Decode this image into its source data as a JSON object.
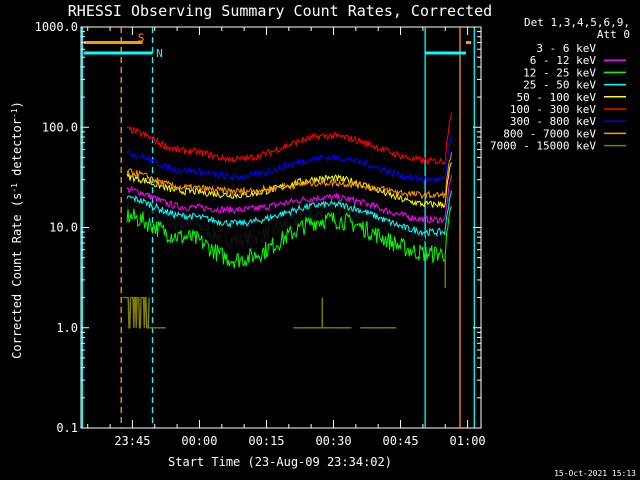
{
  "chart_data": {
    "type": "line",
    "title": "RHESSI Observing Summary Count Rates, Corrected",
    "xlabel": "Start Time (23-Aug-09 23:34:02)",
    "ylabel_main": "Corrected Count Rate (s",
    "ylabel_sup1": "-1",
    "ylabel_mid": " detector",
    "ylabel_sup2": "-1",
    "ylabel_end": ")",
    "yscale": "log",
    "ylim": [
      0.1,
      1000
    ],
    "xlim_minutes": [
      -11.5,
      78
    ],
    "x_ticks": [
      {
        "label": "23:45",
        "minutes": 0
      },
      {
        "label": "00:00",
        "minutes": 15
      },
      {
        "label": "00:15",
        "minutes": 30
      },
      {
        "label": "00:30",
        "minutes": 45
      },
      {
        "label": "00:45",
        "minutes": 60
      },
      {
        "label": "01:00",
        "minutes": 75
      }
    ],
    "y_ticks": [
      {
        "label": "1000.0",
        "value": 1000
      },
      {
        "label": "100.0",
        "value": 100
      },
      {
        "label": "10.0",
        "value": 10
      },
      {
        "label": "1.0",
        "value": 1
      },
      {
        "label": "0.1",
        "value": 0.1
      }
    ],
    "legend_header": [
      "Det 1,3,4,5,6,9,",
      "Att 0"
    ],
    "legend_position": "right",
    "series": [
      {
        "name": "3 - 6 keV",
        "color": "#000000",
        "shape": [
          16,
          11,
          7.5,
          14,
          7.6
        ]
      },
      {
        "name": "6 - 12 keV",
        "color": "#ff00ff",
        "shape": [
          24,
          16,
          15,
          20,
          12
        ]
      },
      {
        "name": "12 - 25 keV",
        "color": "#00ff00",
        "shape": [
          13,
          8,
          4.8,
          12,
          5.5
        ]
      },
      {
        "name": "25 - 50 keV",
        "color": "#00ffff",
        "shape": [
          20,
          13,
          11,
          17,
          9
        ]
      },
      {
        "name": "50 - 100 keV",
        "color": "#ffff00",
        "shape": [
          32,
          23,
          21,
          31,
          17
        ]
      },
      {
        "name": "100 - 300 keV",
        "color": "#ff0000",
        "shape": [
          95,
          58,
          48,
          82,
          46
        ]
      },
      {
        "name": "300 - 800 keV",
        "color": "#0000ff",
        "shape": [
          55,
          37,
          32,
          50,
          30
        ]
      },
      {
        "name": "800 - 7000 keV",
        "color": "#ff9900",
        "shape": [
          36,
          25,
          23,
          28,
          21
        ]
      },
      {
        "name": "7000 - 15000 keV",
        "color": "#808000",
        "shape": [
          1,
          1,
          1,
          1,
          1
        ]
      }
    ],
    "markers": [
      {
        "label": "S",
        "color": "#ff9900",
        "value": 700
      },
      {
        "label": "N",
        "color": "#00ffff",
        "value": 550
      }
    ],
    "timestamp": "15-Oct-2021 15:13"
  }
}
